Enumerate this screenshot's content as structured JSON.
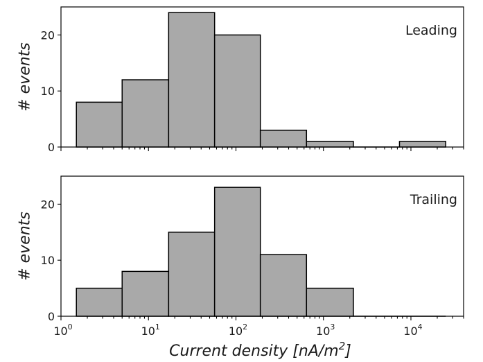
{
  "chart_data": [
    {
      "type": "bar",
      "panel_label": "Leading",
      "ylabel": "# events",
      "xscale": "log",
      "xlim": [
        1,
        40000
      ],
      "ylim": [
        0,
        25
      ],
      "yticks": [
        0,
        10,
        20
      ],
      "bin_edges": [
        1.5,
        5,
        17,
        57,
        190,
        640,
        2200,
        7400,
        25000
      ],
      "values": [
        8,
        12,
        24,
        20,
        3,
        1,
        0,
        1
      ],
      "bar_color": "#a9a9a9"
    },
    {
      "type": "bar",
      "panel_label": "Trailing",
      "ylabel": "# events",
      "xlabel_prefix": "Current density [",
      "xlabel_unit": "nA/m",
      "xlabel_exp": "2",
      "xlabel_suffix": "]",
      "xscale": "log",
      "xlim": [
        1,
        40000
      ],
      "ylim": [
        0,
        25
      ],
      "yticks": [
        0,
        10,
        20
      ],
      "xtick_labels": [
        {
          "base": "10",
          "exp": "0"
        },
        {
          "base": "10",
          "exp": "1"
        },
        {
          "base": "10",
          "exp": "2"
        },
        {
          "base": "10",
          "exp": "3"
        },
        {
          "base": "10",
          "exp": "4"
        }
      ],
      "bin_edges": [
        1.5,
        5,
        17,
        57,
        190,
        640,
        2200,
        7400,
        25000
      ],
      "values": [
        5,
        8,
        15,
        23,
        11,
        5,
        0,
        0
      ],
      "bar_color": "#a9a9a9"
    }
  ]
}
